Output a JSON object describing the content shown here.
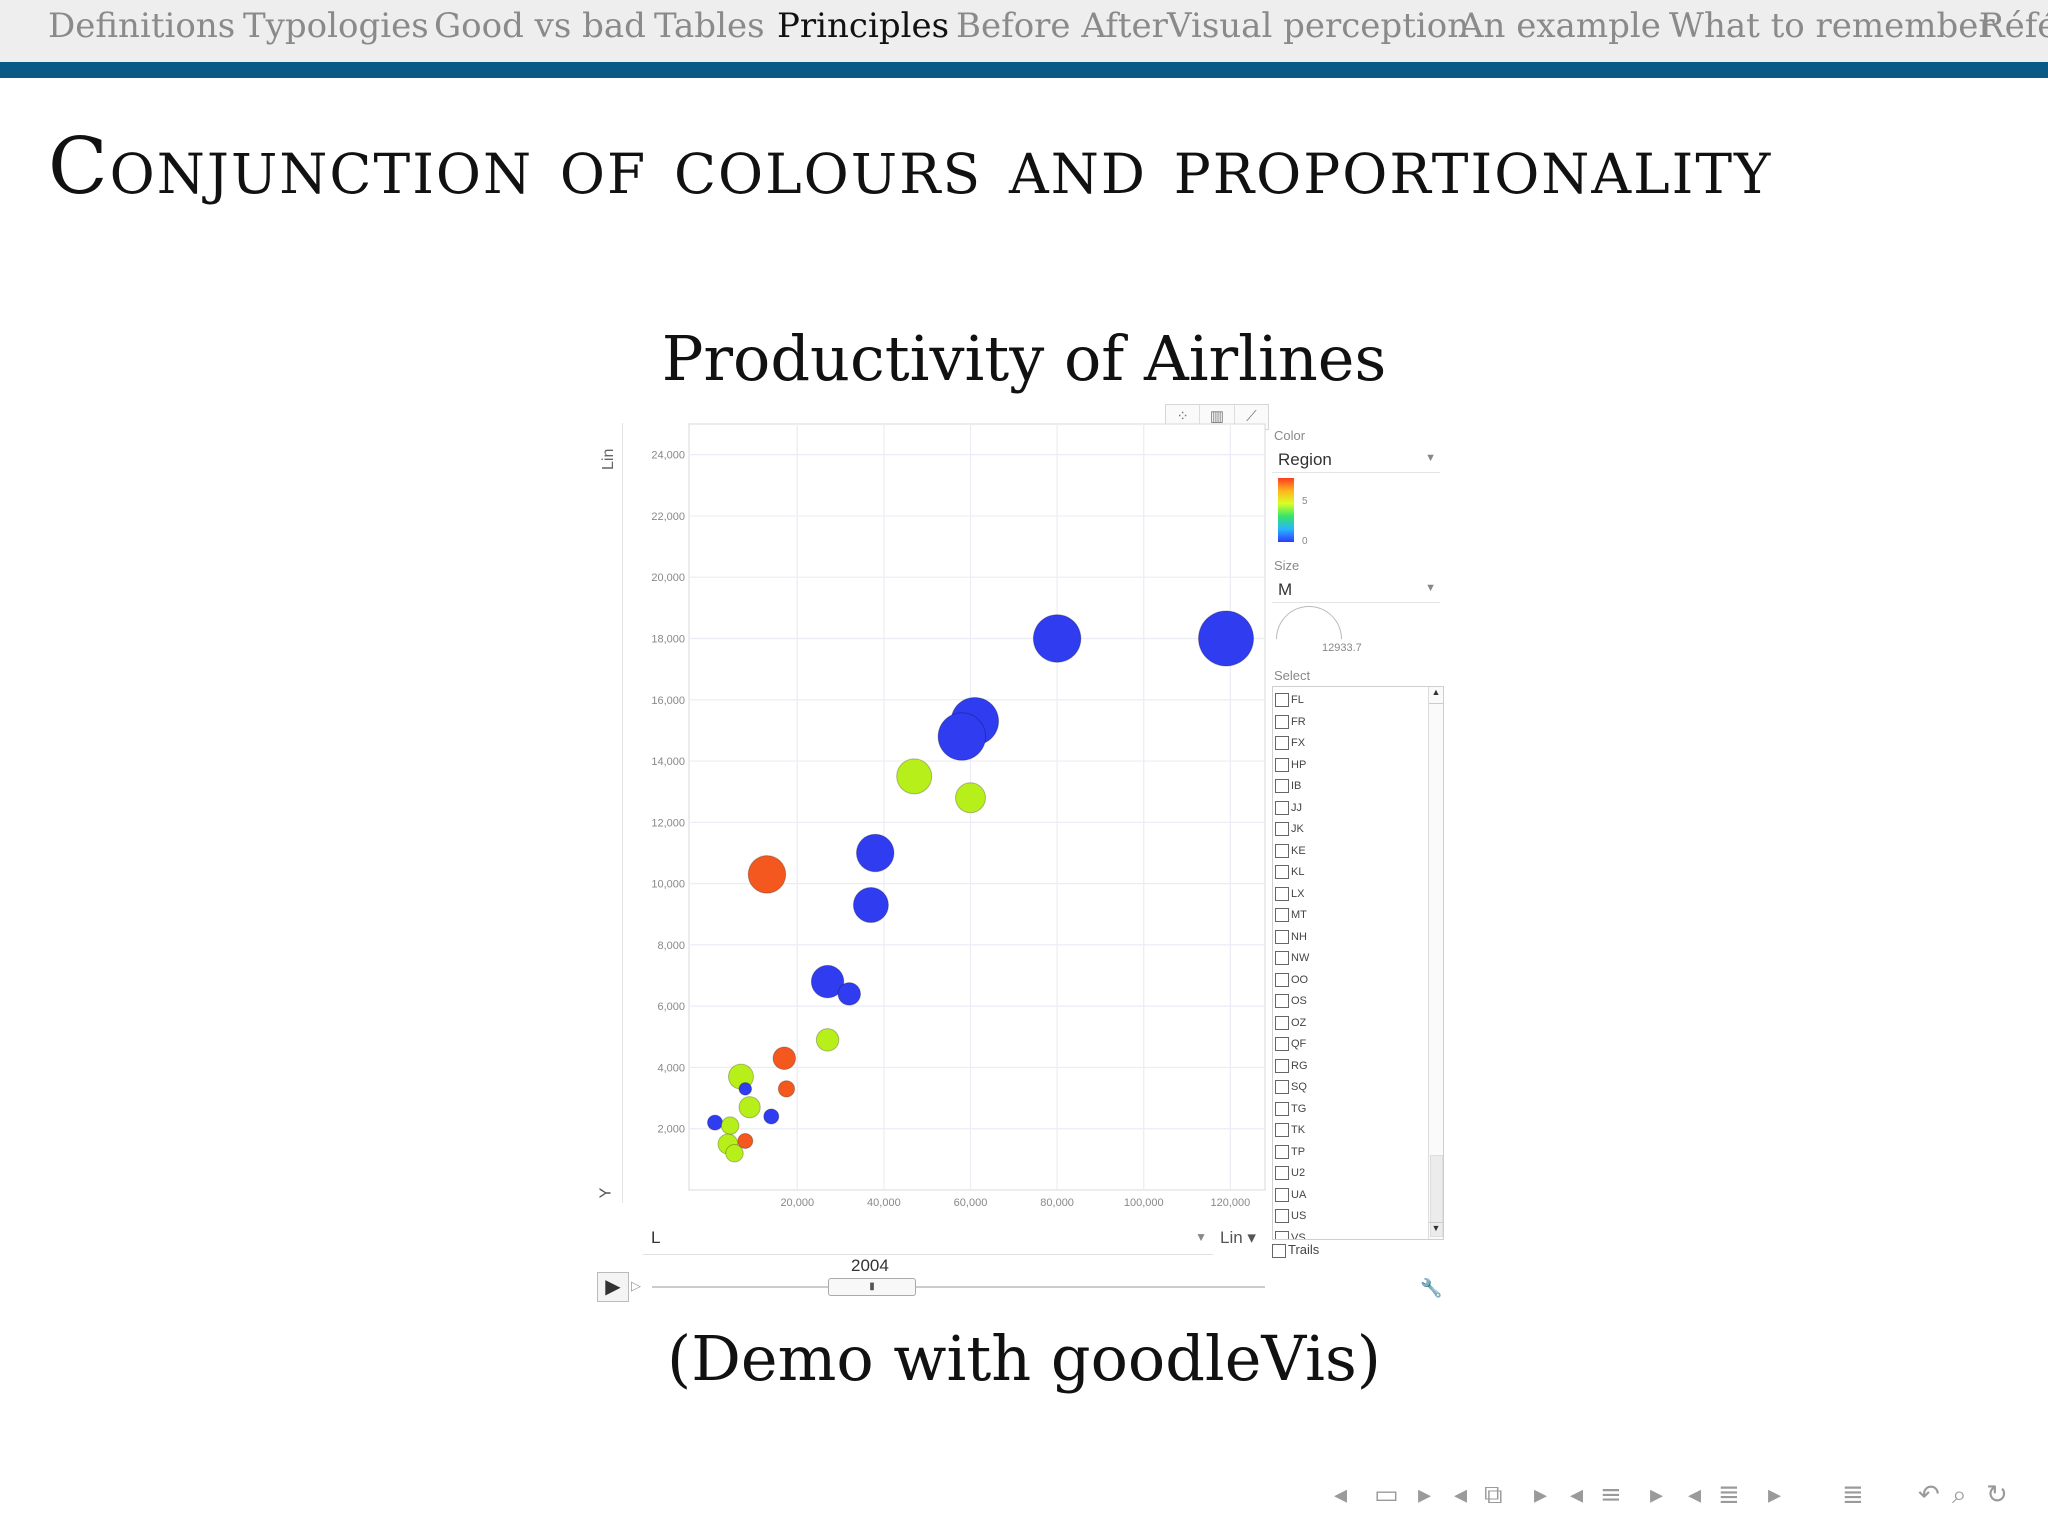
{
  "nav": {
    "items": [
      "Definitions",
      "Typologies",
      "Good vs bad",
      "Tables",
      "Principles",
      "Before After",
      "Visual perception",
      "An example",
      "What to remember",
      "Réfé"
    ],
    "active_index": 4
  },
  "slide_title": "Conjunction of colours and proportionality",
  "chart_title": "Productivity of Airlines",
  "caption": "(Demo with goodleVis)",
  "controls": {
    "y_scale": "Lin",
    "y_axis_letter": "Y",
    "x_axis_var": "L",
    "x_scale": "Lin",
    "year": "2004",
    "color_label": "Color",
    "color_var": "Region",
    "color_scale_max": "5",
    "color_scale_min": "0",
    "size_label": "Size",
    "size_var": "M",
    "size_value": "12933.7",
    "select_label": "Select",
    "select_items": [
      "FL",
      "FR",
      "FX",
      "HP",
      "IB",
      "JJ",
      "JK",
      "KE",
      "KL",
      "LX",
      "MT",
      "NH",
      "NW",
      "OO",
      "OS",
      "OZ",
      "QF",
      "RG",
      "SQ",
      "TG",
      "TK",
      "TP",
      "U2",
      "UA",
      "US",
      "VS"
    ],
    "trails_label": "Trails"
  },
  "colors": {
    "blue": "#2f3cf0",
    "yellowgreen": "#b7ef1b",
    "orange": "#f4581f",
    "accent_bar": "#0b5a86"
  },
  "chart_data": {
    "type": "scatter",
    "title": "Productivity of Airlines",
    "xlabel": "L",
    "ylabel": "Y",
    "xlim": [
      -5000,
      128000
    ],
    "ylim": [
      0,
      25000
    ],
    "x_ticks": [
      "20,000",
      "40,000",
      "60,000",
      "80,000",
      "100,000",
      "120,000"
    ],
    "y_ticks": [
      "2,000",
      "4,000",
      "6,000",
      "8,000",
      "10,000",
      "12,000",
      "14,000",
      "16,000",
      "18,000",
      "20,000",
      "22,000",
      "24,000"
    ],
    "grid": true,
    "points": [
      {
        "x": 119000,
        "y": 18000,
        "size": 44,
        "color": "blue"
      },
      {
        "x": 80000,
        "y": 18000,
        "size": 38,
        "color": "blue"
      },
      {
        "x": 61000,
        "y": 15300,
        "size": 38,
        "color": "blue"
      },
      {
        "x": 58000,
        "y": 14800,
        "size": 38,
        "color": "blue"
      },
      {
        "x": 47000,
        "y": 13500,
        "size": 28,
        "color": "yellowgreen"
      },
      {
        "x": 60000,
        "y": 12800,
        "size": 24,
        "color": "yellowgreen"
      },
      {
        "x": 38000,
        "y": 11000,
        "size": 30,
        "color": "blue"
      },
      {
        "x": 37000,
        "y": 9300,
        "size": 28,
        "color": "blue"
      },
      {
        "x": 13000,
        "y": 10300,
        "size": 30,
        "color": "orange"
      },
      {
        "x": 27000,
        "y": 6800,
        "size": 26,
        "color": "blue"
      },
      {
        "x": 32000,
        "y": 6400,
        "size": 18,
        "color": "blue"
      },
      {
        "x": 27000,
        "y": 4900,
        "size": 18,
        "color": "yellowgreen"
      },
      {
        "x": 17000,
        "y": 4300,
        "size": 18,
        "color": "orange"
      },
      {
        "x": 17500,
        "y": 3300,
        "size": 13,
        "color": "orange"
      },
      {
        "x": 7000,
        "y": 3700,
        "size": 20,
        "color": "yellowgreen"
      },
      {
        "x": 8000,
        "y": 3300,
        "size": 10,
        "color": "blue"
      },
      {
        "x": 9000,
        "y": 2700,
        "size": 17,
        "color": "yellowgreen"
      },
      {
        "x": 14000,
        "y": 2400,
        "size": 12,
        "color": "blue"
      },
      {
        "x": 1000,
        "y": 2200,
        "size": 12,
        "color": "blue"
      },
      {
        "x": 4500,
        "y": 2100,
        "size": 14,
        "color": "yellowgreen"
      },
      {
        "x": 4000,
        "y": 1500,
        "size": 16,
        "color": "yellowgreen"
      },
      {
        "x": 5500,
        "y": 1200,
        "size": 14,
        "color": "yellowgreen"
      },
      {
        "x": 8000,
        "y": 1600,
        "size": 12,
        "color": "orange"
      }
    ]
  },
  "footer_icons": [
    "left-arrow-icon",
    "frame-icon",
    "right-arrow-icon",
    "left-arrow-icon",
    "frames-icon",
    "right-arrow-icon",
    "left-arrow-icon",
    "section-icon",
    "right-arrow-icon",
    "left-arrow-icon",
    "subsection-icon",
    "right-arrow-icon",
    "toc-icon",
    "back-icon",
    "search-icon",
    "refresh-icon"
  ]
}
